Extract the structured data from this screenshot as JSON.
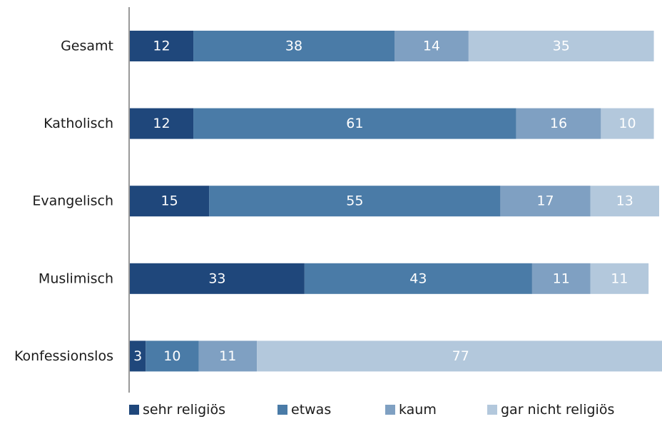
{
  "chart_data": {
    "type": "bar",
    "orientation": "horizontal",
    "stacked": true,
    "categories": [
      "Gesamt",
      "Katholisch",
      "Evangelisch",
      "Muslimisch",
      "Konfessionslos"
    ],
    "series": [
      {
        "name": "sehr religiös",
        "values": [
          12,
          12,
          15,
          33,
          3
        ],
        "color": "#1f477b"
      },
      {
        "name": "etwas",
        "values": [
          38,
          61,
          55,
          43,
          10
        ],
        "color": "#4a7ba7"
      },
      {
        "name": "kaum",
        "values": [
          14,
          16,
          17,
          11,
          11
        ],
        "color": "#7fa0c2"
      },
      {
        "name": "gar nicht religiös",
        "values": [
          35,
          10,
          13,
          11,
          77
        ],
        "color": "#b3c8dc"
      }
    ],
    "xlim": [
      0,
      100
    ],
    "grid": false,
    "legend_position": "bottom"
  }
}
